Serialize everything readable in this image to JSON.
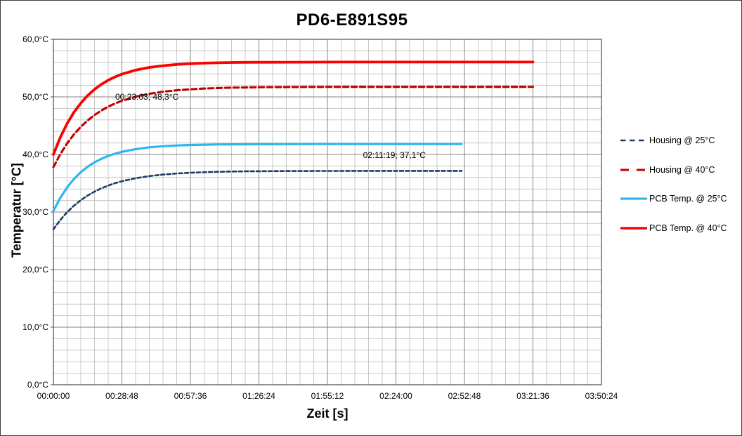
{
  "chart_data": {
    "type": "line",
    "title": "PD6-E891S95",
    "xlabel": "Zeit [s]",
    "ylabel": "Temperatur [°C]",
    "xlim_seconds": [
      0,
      13824
    ],
    "ylim": [
      0,
      60
    ],
    "grid": true,
    "x_minor_step_seconds": 345.6,
    "y_minor_step": 2,
    "legend_position": "right",
    "x_major_ticks": [
      {
        "t": 0,
        "label": "00:00:00"
      },
      {
        "t": 1728,
        "label": "00:28:48"
      },
      {
        "t": 3456,
        "label": "00:57:36"
      },
      {
        "t": 5184,
        "label": "01:26:24"
      },
      {
        "t": 6912,
        "label": "01:55:12"
      },
      {
        "t": 8640,
        "label": "02:24:00"
      },
      {
        "t": 10368,
        "label": "02:52:48"
      },
      {
        "t": 12096,
        "label": "03:21:36"
      },
      {
        "t": 13824,
        "label": "03:50:24"
      }
    ],
    "y_major_ticks": [
      {
        "v": 0,
        "label": "0,0°C"
      },
      {
        "v": 10,
        "label": "10,0°C"
      },
      {
        "v": 20,
        "label": "20,0°C"
      },
      {
        "v": 30,
        "label": "30,0°C"
      },
      {
        "v": 40,
        "label": "40,0°C"
      },
      {
        "v": 50,
        "label": "50,0°C"
      },
      {
        "v": 60,
        "label": "60,0°C"
      }
    ],
    "annotations": [
      {
        "text": "00:23:03; 48,3°C",
        "series": "Housing @ 40°C",
        "t": 1383,
        "value": 48.3
      },
      {
        "text": "02:11:19; 37,1°C",
        "series": "Housing @ 25°C",
        "t": 7879,
        "value": 37.1
      }
    ],
    "series": [
      {
        "name": "Housing @ 25°C",
        "color": "#1F3864",
        "style": "dashed",
        "width": 2.6,
        "dash": "5 3.5",
        "legend_dash": "7.5 5.5",
        "points": [
          [
            0,
            27.0
          ],
          [
            173,
            28.61
          ],
          [
            346,
            29.97
          ],
          [
            518,
            31.1
          ],
          [
            691,
            32.06
          ],
          [
            864,
            32.87
          ],
          [
            1037,
            33.55
          ],
          [
            1210,
            34.12
          ],
          [
            1383,
            34.6
          ],
          [
            1556,
            35.01
          ],
          [
            1728,
            35.35
          ],
          [
            2074,
            35.87
          ],
          [
            2419,
            36.25
          ],
          [
            2765,
            36.51
          ],
          [
            3110,
            36.7
          ],
          [
            3456,
            36.83
          ],
          [
            3802,
            36.92
          ],
          [
            4147,
            36.99
          ],
          [
            4493,
            37.04
          ],
          [
            4838,
            37.07
          ],
          [
            5184,
            37.09
          ],
          [
            5875,
            37.12
          ],
          [
            6566,
            37.14
          ],
          [
            7258,
            37.14
          ],
          [
            7949,
            37.15
          ],
          [
            8640,
            37.15
          ],
          [
            9331,
            37.15
          ],
          [
            10022,
            37.15
          ],
          [
            10296,
            37.15
          ]
        ]
      },
      {
        "name": "Housing @ 40°C",
        "color": "#C00000",
        "style": "dashed",
        "width": 3.1,
        "dash": "7.5 4.5",
        "legend_dash": "12 11",
        "points": [
          [
            0,
            37.8
          ],
          [
            173,
            40.04
          ],
          [
            346,
            41.91
          ],
          [
            518,
            43.48
          ],
          [
            691,
            44.81
          ],
          [
            864,
            45.92
          ],
          [
            1037,
            46.85
          ],
          [
            1210,
            47.64
          ],
          [
            1383,
            48.3
          ],
          [
            1556,
            48.85
          ],
          [
            1728,
            49.32
          ],
          [
            2074,
            50.03
          ],
          [
            2419,
            50.54
          ],
          [
            2765,
            50.9
          ],
          [
            3110,
            51.15
          ],
          [
            3456,
            51.32
          ],
          [
            3802,
            51.45
          ],
          [
            4147,
            51.54
          ],
          [
            4493,
            51.6
          ],
          [
            4838,
            51.64
          ],
          [
            5184,
            51.68
          ],
          [
            5875,
            51.71
          ],
          [
            6566,
            51.73
          ],
          [
            7258,
            51.74
          ],
          [
            7949,
            51.75
          ],
          [
            8640,
            51.75
          ],
          [
            9331,
            51.75
          ],
          [
            10022,
            51.75
          ],
          [
            10714,
            51.75
          ],
          [
            11405,
            51.75
          ],
          [
            12096,
            51.75
          ]
        ]
      },
      {
        "name": "PCB Temp. @ 25°C",
        "color": "#2CB6F0",
        "style": "solid",
        "width": 3.2,
        "dash": "",
        "legend_dash": "",
        "points": [
          [
            0,
            30.2
          ],
          [
            173,
            32.46
          ],
          [
            346,
            34.27
          ],
          [
            518,
            35.73
          ],
          [
            691,
            36.91
          ],
          [
            864,
            37.86
          ],
          [
            1037,
            38.63
          ],
          [
            1210,
            39.25
          ],
          [
            1383,
            39.74
          ],
          [
            1556,
            40.14
          ],
          [
            1728,
            40.46
          ],
          [
            2074,
            40.93
          ],
          [
            2419,
            41.24
          ],
          [
            2765,
            41.43
          ],
          [
            3110,
            41.56
          ],
          [
            3456,
            41.65
          ],
          [
            3802,
            41.7
          ],
          [
            4147,
            41.74
          ],
          [
            4493,
            41.76
          ],
          [
            4838,
            41.77
          ],
          [
            5184,
            41.78
          ],
          [
            5875,
            41.79
          ],
          [
            6566,
            41.8
          ],
          [
            7258,
            41.8
          ],
          [
            7949,
            41.8
          ],
          [
            8640,
            41.8
          ],
          [
            9331,
            41.8
          ],
          [
            10022,
            41.8
          ],
          [
            10296,
            41.8
          ]
        ]
      },
      {
        "name": "PCB Temp. @ 40°C",
        "color": "#FF0000",
        "style": "solid",
        "width": 3.8,
        "dash": "",
        "legend_dash": "",
        "points": [
          [
            0,
            40.0
          ],
          [
            173,
            42.96
          ],
          [
            346,
            45.36
          ],
          [
            518,
            47.32
          ],
          [
            691,
            48.92
          ],
          [
            864,
            50.24
          ],
          [
            1037,
            51.31
          ],
          [
            1210,
            52.18
          ],
          [
            1383,
            52.9
          ],
          [
            1556,
            53.48
          ],
          [
            1728,
            53.95
          ],
          [
            2074,
            54.65
          ],
          [
            2419,
            55.12
          ],
          [
            2765,
            55.42
          ],
          [
            3110,
            55.63
          ],
          [
            3456,
            55.77
          ],
          [
            3802,
            55.87
          ],
          [
            4147,
            55.93
          ],
          [
            4493,
            55.97
          ],
          [
            4838,
            56.0
          ],
          [
            5184,
            56.01
          ],
          [
            5875,
            56.03
          ],
          [
            6566,
            56.04
          ],
          [
            7258,
            56.05
          ],
          [
            7949,
            56.05
          ],
          [
            8640,
            56.05
          ],
          [
            9331,
            56.05
          ],
          [
            10022,
            56.05
          ],
          [
            10714,
            56.05
          ],
          [
            11405,
            56.05
          ],
          [
            12096,
            56.05
          ]
        ]
      }
    ],
    "colors": {
      "grid_minor": "#C8C8C8",
      "grid_major": "#838383",
      "plot_border": "#4D4D4D",
      "text": "#000000"
    }
  }
}
